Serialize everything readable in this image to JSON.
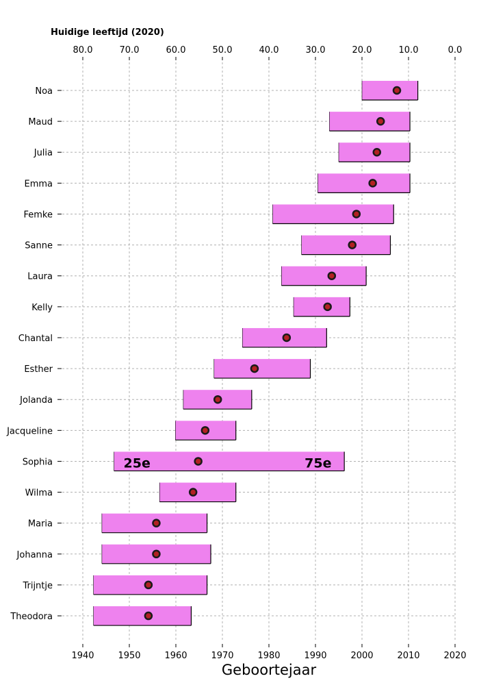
{
  "chart_data": {
    "type": "bar",
    "subtype": "horizontal-range-with-median",
    "top_axis_title": "Huidige leeftijd (2020)",
    "xlabel": "Geboortejaar",
    "reference_year": 2020,
    "xlim": [
      1940,
      2020
    ],
    "x_ticks": [
      1940,
      1950,
      1960,
      1970,
      1980,
      1990,
      2000,
      2010,
      2020
    ],
    "top_ticks": [
      "80.0",
      "70.0",
      "60.0",
      "50.0",
      "40.0",
      "30.0",
      "20.0",
      "10.0",
      "0.0"
    ],
    "grid": true,
    "colors": {
      "bar": "#ee82ee",
      "bar_edge": "#000000",
      "median_fill": "#b22222",
      "median_edge": "#1a1a1a",
      "grid": "#b0b0b0"
    },
    "annotation": {
      "row": "Sophia",
      "left": "25e",
      "right": "75e"
    },
    "rows": [
      {
        "name": "Noa",
        "p25": 2000.0,
        "median": 2007.5,
        "p75": 2012.0
      },
      {
        "name": "Maud",
        "p25": 1993.0,
        "median": 2004.0,
        "p75": 2010.3
      },
      {
        "name": "Julia",
        "p25": 1995.0,
        "median": 2003.2,
        "p75": 2010.3
      },
      {
        "name": "Emma",
        "p25": 1990.5,
        "median": 2002.3,
        "p75": 2010.3
      },
      {
        "name": "Femke",
        "p25": 1980.8,
        "median": 1998.8,
        "p75": 2006.8
      },
      {
        "name": "Sanne",
        "p25": 1987.0,
        "median": 1997.9,
        "p75": 2006.1
      },
      {
        "name": "Laura",
        "p25": 1982.7,
        "median": 1993.5,
        "p75": 2000.9
      },
      {
        "name": "Kelly",
        "p25": 1985.3,
        "median": 1992.6,
        "p75": 1997.4
      },
      {
        "name": "Chantal",
        "p25": 1974.3,
        "median": 1983.8,
        "p75": 1992.4
      },
      {
        "name": "Esther",
        "p25": 1968.2,
        "median": 1976.9,
        "p75": 1988.9
      },
      {
        "name": "Jolanda",
        "p25": 1961.6,
        "median": 1969.0,
        "p75": 1976.3
      },
      {
        "name": "Jacqueline",
        "p25": 1959.9,
        "median": 1966.3,
        "p75": 1972.9
      },
      {
        "name": "Sophia",
        "p25": 1946.7,
        "median": 1964.8,
        "p75": 1996.2
      },
      {
        "name": "Wilma",
        "p25": 1956.5,
        "median": 1963.7,
        "p75": 1972.9
      },
      {
        "name": "Maria",
        "p25": 1944.1,
        "median": 1955.8,
        "p75": 1966.7
      },
      {
        "name": "Johanna",
        "p25": 1944.1,
        "median": 1955.8,
        "p75": 1967.5
      },
      {
        "name": "Trijntje",
        "p25": 1942.3,
        "median": 1954.1,
        "p75": 1966.7
      },
      {
        "name": "Theodora",
        "p25": 1942.3,
        "median": 1954.1,
        "p75": 1963.3
      }
    ]
  }
}
